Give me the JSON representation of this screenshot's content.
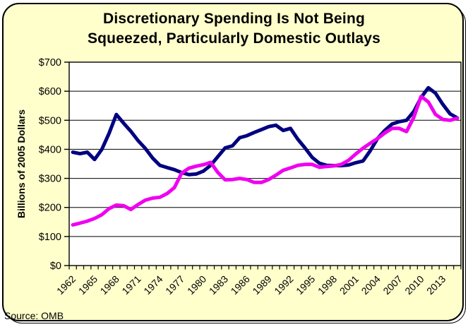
{
  "title": {
    "line1": "Discretionary Spending Is Not Being",
    "line2": "Squeezed, Particularly Domestic Outlays"
  },
  "y_axis_title": "Billions of 2005 Dollars",
  "source_note": "Source: OMB",
  "colors": {
    "background": "#FFFFCC",
    "plot_background": "#FFFFFF",
    "axis_and_grid": "#000000",
    "navy_series": "#000080",
    "magenta_series": "#F000F0"
  },
  "chart_data": {
    "type": "line",
    "title": "Discretionary Spending Is Not Being Squeezed, Particularly Domestic Outlays",
    "xlabel": "",
    "ylabel": "Billions of 2005 Dollars",
    "ylim": [
      0,
      700
    ],
    "y_tick_interval": 100,
    "y_tick_labels": [
      "$0",
      "$100",
      "$200",
      "$300",
      "$400",
      "$500",
      "$600",
      "$700"
    ],
    "x_tick_labels": [
      "1962",
      "1965",
      "1968",
      "1971",
      "1974",
      "1977",
      "1980",
      "1983",
      "1986",
      "1989",
      "1992",
      "1995",
      "1998",
      "2001",
      "2004",
      "2007",
      "2010",
      "2013"
    ],
    "grid": "horizontal",
    "legend": "none",
    "x": [
      1962,
      1963,
      1964,
      1965,
      1966,
      1967,
      1968,
      1969,
      1970,
      1971,
      1972,
      1973,
      1974,
      1975,
      1976,
      1977,
      1978,
      1979,
      1980,
      1981,
      1982,
      1983,
      1984,
      1985,
      1986,
      1987,
      1988,
      1989,
      1990,
      1991,
      1992,
      1993,
      1994,
      1995,
      1996,
      1997,
      1998,
      1999,
      2000,
      2001,
      2002,
      2003,
      2004,
      2005,
      2006,
      2007,
      2008,
      2009,
      2010,
      2011,
      2012,
      2013,
      2014,
      2015
    ],
    "series": [
      {
        "name": "navy-line",
        "color": "#000080",
        "values": [
          390,
          385,
          390,
          365,
          400,
          455,
          520,
          490,
          462,
          430,
          403,
          370,
          345,
          337,
          330,
          320,
          313,
          315,
          325,
          345,
          375,
          405,
          412,
          440,
          447,
          458,
          468,
          478,
          483,
          465,
          472,
          435,
          405,
          372,
          352,
          345,
          344,
          344,
          346,
          354,
          360,
          395,
          437,
          465,
          487,
          495,
          500,
          530,
          578,
          612,
          593,
          555,
          522,
          508
        ]
      },
      {
        "name": "magenta-line",
        "color": "#F000F0",
        "values": [
          140,
          146,
          153,
          162,
          175,
          196,
          208,
          206,
          193,
          210,
          225,
          232,
          235,
          248,
          268,
          318,
          335,
          342,
          347,
          355,
          320,
          295,
          296,
          300,
          296,
          286,
          286,
          296,
          311,
          328,
          336,
          345,
          348,
          348,
          338,
          341,
          343,
          348,
          362,
          384,
          404,
          421,
          437,
          456,
          472,
          472,
          461,
          510,
          582,
          563,
          520,
          503,
          500,
          507
        ]
      }
    ]
  }
}
